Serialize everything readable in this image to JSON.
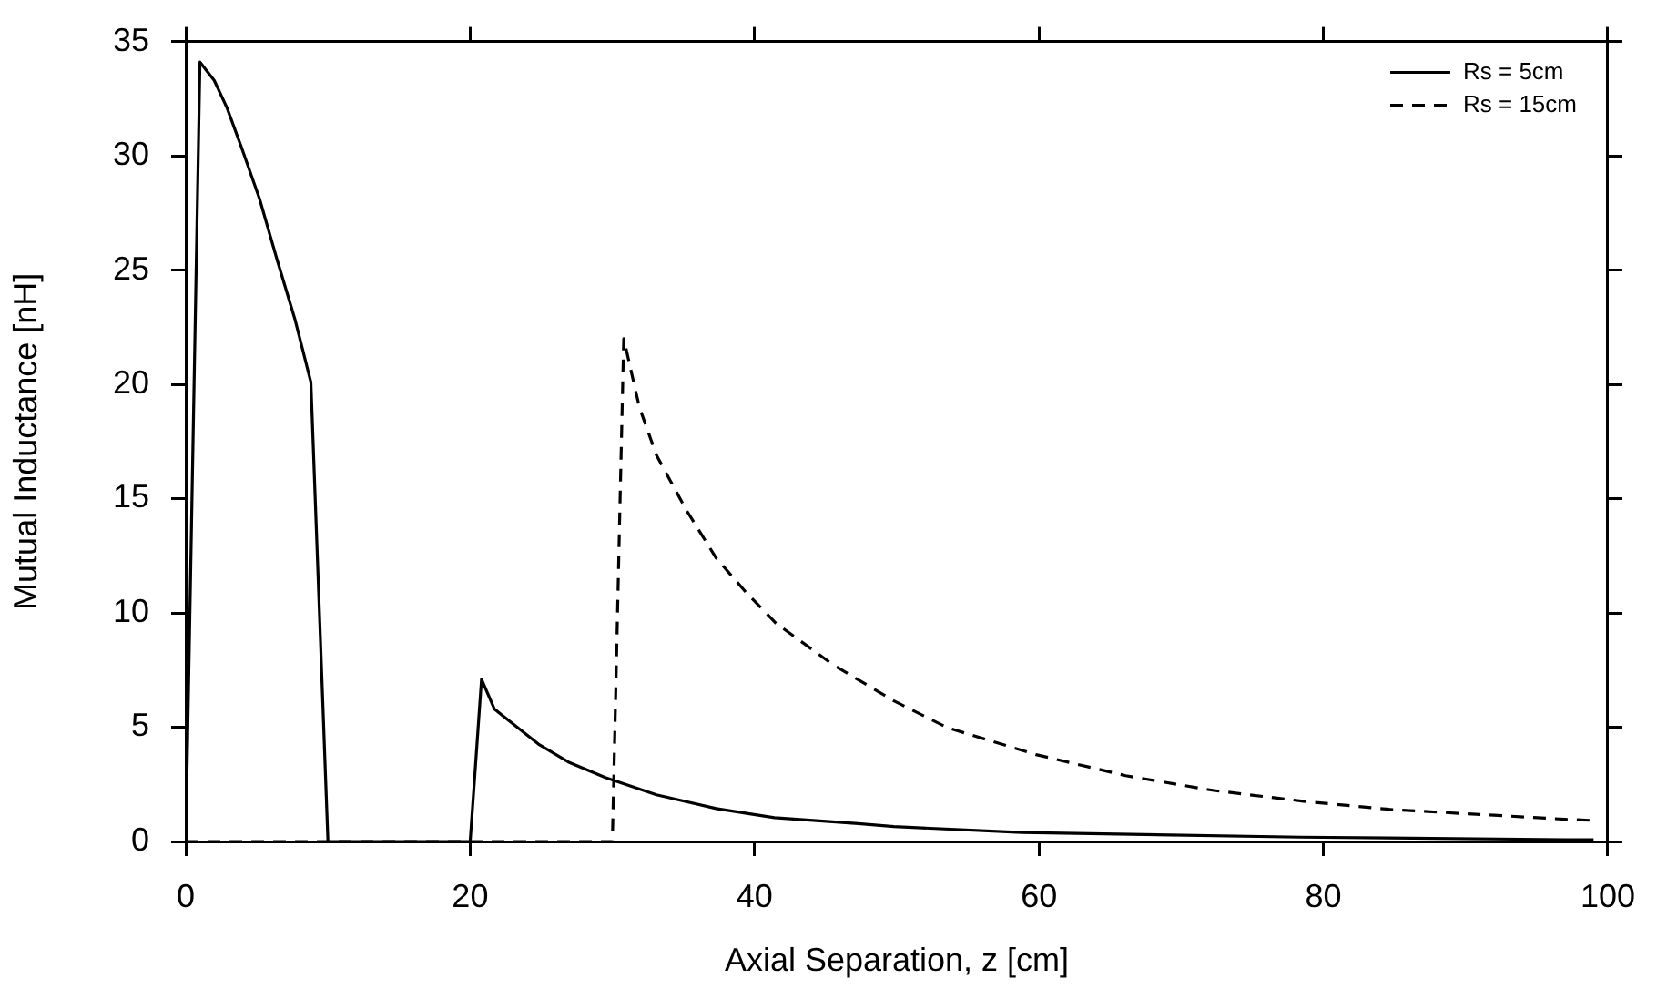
{
  "chart_data": {
    "type": "line",
    "xlabel": "Axial Separation, z [cm]",
    "ylabel": "Mutual Inductance [nH]",
    "xlim": [
      0,
      100
    ],
    "xticks": [
      0,
      20,
      40,
      60,
      80,
      100
    ],
    "ylim": [
      0,
      35
    ],
    "yticks": [
      0,
      5,
      10,
      15,
      20,
      25,
      30,
      35
    ],
    "grid": false,
    "legend": "top right",
    "marker": "none",
    "series": [
      {
        "name": "Rs = 5cm",
        "color": "#000000",
        "line_style": "solid",
        "x": [
          0,
          1,
          2,
          2.9,
          3.9,
          5.2,
          6.4,
          7.7,
          8.8,
          10,
          20,
          20.8,
          21.7,
          22.7,
          24.8,
          26.9,
          29.5,
          33.1,
          37.3,
          41.4,
          47.3,
          49.8,
          58.8,
          78.4,
          97,
          99
        ],
        "values": [
          0,
          34.1,
          33.3,
          32.1,
          30.4,
          28.1,
          25.5,
          22.8,
          20.1,
          0,
          0,
          7.1,
          5.8,
          5.3,
          4.26,
          3.48,
          2.8,
          2.04,
          1.44,
          1.04,
          0.78,
          0.65,
          0.39,
          0.19,
          0.08,
          0.08
        ]
      },
      {
        "name": "Rs = 15cm",
        "color": "#000000",
        "line_style": "dashed",
        "x": [
          0,
          30,
          30.8,
          31.9,
          33.1,
          35.2,
          37.3,
          39.4,
          41.5,
          45.6,
          49.8,
          53.6,
          59.8,
          66.1,
          72.3,
          78.6,
          84.9,
          91.1,
          97,
          99
        ],
        "values": [
          0,
          0,
          22.0,
          19,
          16.9,
          14.5,
          12.4,
          10.9,
          9.55,
          7.7,
          6.15,
          4.97,
          3.8,
          2.88,
          2.23,
          1.76,
          1.39,
          1.18,
          0.97,
          0.92
        ]
      }
    ]
  }
}
